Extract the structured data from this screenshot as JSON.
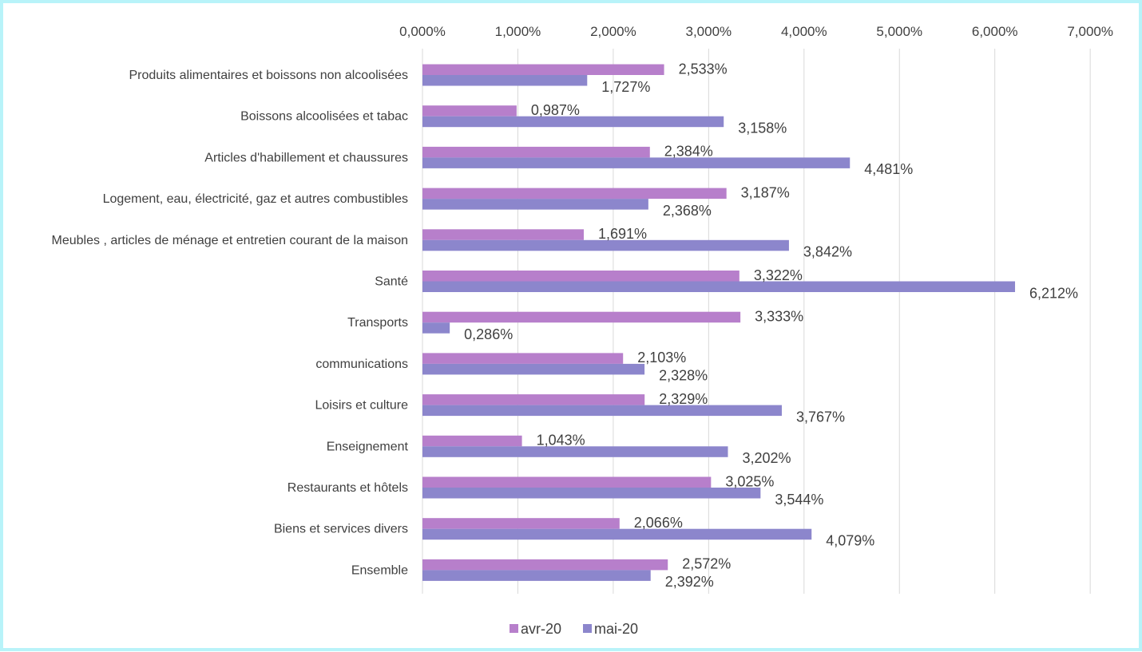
{
  "colors": {
    "frame": "#b8f3f9",
    "grid": "#d9d9d9",
    "text": "#404040"
  },
  "chart_data": {
    "type": "bar",
    "orientation": "horizontal",
    "title": "",
    "xlabel": "",
    "ylabel": "",
    "xlim": [
      0,
      7
    ],
    "x_tick_labels": [
      "0,000%",
      "1,000%",
      "2,000%",
      "3,000%",
      "4,000%",
      "5,000%",
      "6,000%",
      "7,000%"
    ],
    "axis_position": "top",
    "grid": true,
    "legend_position": "bottom",
    "categories": [
      "Produits alimentaires et boissons non alcoolisées",
      "Boissons alcoolisées et tabac",
      "Articles d'habillement et  chaussures",
      "Logement, eau, électricité, gaz et autres combustibles",
      "Meubles , articles de ménage et entretien courant de la maison",
      "Santé",
      "Transports",
      "communications",
      "Loisirs  et culture",
      "Enseignement",
      "Restaurants et hôtels",
      "Biens et services divers",
      "Ensemble"
    ],
    "series": [
      {
        "name": "avr-20",
        "color": "#b77fcb",
        "values": [
          2.533,
          0.987,
          2.384,
          3.187,
          1.691,
          3.322,
          3.333,
          2.103,
          2.329,
          1.043,
          3.025,
          2.066,
          2.572
        ],
        "labels": [
          "2,533%",
          "0,987%",
          "2,384%",
          "3,187%",
          "1,691%",
          "3,322%",
          "3,333%",
          "2,103%",
          "2,329%",
          "1,043%",
          "3,025%",
          "2,066%",
          "2,572%"
        ]
      },
      {
        "name": "mai-20",
        "color": "#8c86cc",
        "values": [
          1.727,
          3.158,
          4.481,
          2.368,
          3.842,
          6.212,
          0.286,
          2.328,
          3.767,
          3.202,
          3.544,
          4.079,
          2.392
        ],
        "labels": [
          "1,727%",
          "3,158%",
          "4,481%",
          "2,368%",
          "3,842%",
          "6,212%",
          "0,286%",
          "2,328%",
          "3,767%",
          "3,202%",
          "3,544%",
          "4,079%",
          "2,392%"
        ]
      }
    ]
  }
}
